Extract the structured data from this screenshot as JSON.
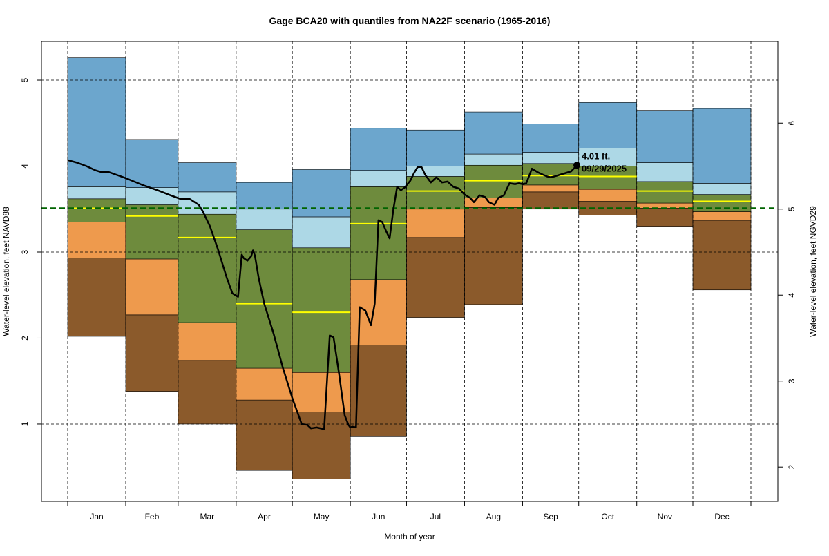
{
  "chart_data": {
    "type": "area",
    "title": "Gage BCA20 with quantiles from NA22F scenario (1965-2016)",
    "xlabel": "Month of year",
    "ylabel": "Water-level elevation, feet NAVD88",
    "y2label": "Water-level elevation, feet NGVD29",
    "xlim": [
      0,
      365
    ],
    "ylim": [
      0.1,
      5.45
    ],
    "y_ticks": [
      1,
      2,
      3,
      4,
      5
    ],
    "y2_offset": 1.5,
    "y2_ticks": [
      2,
      3,
      4,
      5,
      6
    ],
    "grid": true,
    "month_boundaries": [
      0,
      31,
      59,
      90,
      120,
      151,
      181,
      212,
      243,
      273,
      304,
      334,
      365
    ],
    "categories": [
      "Jan",
      "Feb",
      "Mar",
      "Apr",
      "May",
      "Jun",
      "Jul",
      "Aug",
      "Sep",
      "Oct",
      "Nov",
      "Dec"
    ],
    "quantile_bands": {
      "colors": [
        "#8B5A2B",
        "#EE9A4D",
        "#6E8B3D",
        "#ADD8E6",
        "#6CA6CD"
      ],
      "min": [
        2.02,
        1.38,
        1.0,
        0.46,
        0.36,
        0.86,
        2.24,
        2.39,
        3.5,
        3.43,
        3.3,
        2.56
      ],
      "q10": [
        2.93,
        2.27,
        1.74,
        1.28,
        1.14,
        1.92,
        3.17,
        3.52,
        3.7,
        3.59,
        3.51,
        3.37
      ],
      "q25": [
        3.35,
        2.92,
        2.18,
        1.65,
        1.6,
        2.68,
        3.5,
        3.63,
        3.78,
        3.73,
        3.57,
        3.47
      ],
      "q75": [
        3.62,
        3.55,
        3.44,
        3.26,
        3.05,
        3.76,
        3.88,
        4.01,
        4.03,
        4.0,
        3.82,
        3.67
      ],
      "q90": [
        3.76,
        3.75,
        3.7,
        3.5,
        3.41,
        3.95,
        4.0,
        4.14,
        4.16,
        4.21,
        4.04,
        3.8
      ],
      "max": [
        5.26,
        4.31,
        4.04,
        3.81,
        3.96,
        4.44,
        4.42,
        4.63,
        4.49,
        4.74,
        4.65,
        4.67
      ],
      "median": [
        3.51,
        3.42,
        3.17,
        2.4,
        2.3,
        3.33,
        3.71,
        3.83,
        3.89,
        3.88,
        3.71,
        3.59
      ]
    },
    "reference_line": {
      "value": 3.51,
      "color": "#006400",
      "style": "dashed"
    },
    "series": [
      {
        "name": "Daily water level",
        "color": "#000000",
        "x": [
          0,
          5,
          10,
          15,
          18,
          22,
          26,
          31,
          40,
          48,
          55,
          60,
          65,
          70,
          72,
          76,
          80,
          85,
          88,
          91,
          93,
          94,
          96,
          98,
          99,
          100,
          102,
          105,
          110,
          115,
          120,
          125,
          128,
          130,
          133,
          137,
          140,
          142,
          145,
          148,
          150,
          151,
          152,
          154,
          156,
          159,
          162,
          164,
          166,
          168,
          170,
          172,
          174,
          176,
          178,
          180,
          183,
          185,
          187,
          189,
          191,
          194,
          197,
          200,
          203,
          206,
          209,
          212,
          215,
          217,
          220,
          223,
          225,
          228,
          230,
          233,
          236,
          239,
          241,
          243,
          245,
          248,
          251,
          254,
          256,
          258,
          260,
          263,
          266,
          269,
          272
        ],
        "values": [
          4.07,
          4.04,
          4.0,
          3.95,
          3.93,
          3.93,
          3.9,
          3.86,
          3.78,
          3.72,
          3.66,
          3.62,
          3.62,
          3.55,
          3.48,
          3.3,
          3.05,
          2.7,
          2.52,
          2.48,
          2.97,
          2.93,
          2.9,
          2.95,
          3.02,
          2.96,
          2.7,
          2.4,
          2.05,
          1.65,
          1.3,
          1.0,
          0.99,
          0.95,
          0.96,
          0.94,
          2.03,
          2.01,
          1.58,
          1.1,
          0.99,
          0.96,
          0.97,
          0.96,
          2.36,
          2.32,
          2.15,
          2.4,
          3.37,
          3.35,
          3.25,
          3.16,
          3.5,
          3.76,
          3.72,
          3.75,
          3.83,
          3.92,
          3.99,
          3.99,
          3.9,
          3.81,
          3.87,
          3.81,
          3.82,
          3.76,
          3.74,
          3.67,
          3.63,
          3.58,
          3.66,
          3.64,
          3.58,
          3.55,
          3.63,
          3.66,
          3.8,
          3.79,
          3.8,
          3.79,
          3.8,
          3.97,
          3.93,
          3.9,
          3.88,
          3.87,
          3.88,
          3.9,
          3.92,
          3.94,
          4.01
        ]
      }
    ],
    "annotation": {
      "x": 272,
      "y": 4.01,
      "value_label": "4.01 ft.",
      "date_label": "09/29/2025"
    }
  }
}
